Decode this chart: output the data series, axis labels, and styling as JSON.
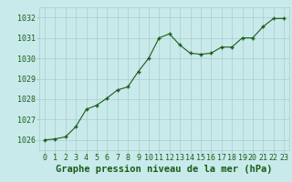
{
  "x": [
    0,
    1,
    2,
    3,
    4,
    5,
    6,
    7,
    8,
    9,
    10,
    11,
    12,
    13,
    14,
    15,
    16,
    17,
    18,
    19,
    20,
    21,
    22,
    23
  ],
  "y": [
    1026.0,
    1026.05,
    1026.15,
    1026.65,
    1027.5,
    1027.7,
    1028.05,
    1028.45,
    1028.6,
    1029.35,
    1030.0,
    1031.0,
    1031.2,
    1030.65,
    1030.25,
    1030.2,
    1030.25,
    1030.55,
    1030.55,
    1031.0,
    1031.0,
    1031.55,
    1031.95,
    1031.95
  ],
  "line_color": "#1a5c1a",
  "marker_color": "#1a5c1a",
  "bg_color": "#c8eaea",
  "grid_color": "#aacccc",
  "title": "Graphe pression niveau de la mer (hPa)",
  "title_color": "#1a5c1a",
  "ylim": [
    1025.5,
    1032.5
  ],
  "xlim": [
    -0.5,
    23.5
  ],
  "yticks": [
    1026,
    1027,
    1028,
    1029,
    1030,
    1031,
    1032
  ],
  "xtick_labels": [
    "0",
    "1",
    "2",
    "3",
    "4",
    "5",
    "6",
    "7",
    "8",
    "9",
    "10",
    "11",
    "12",
    "13",
    "14",
    "15",
    "16",
    "17",
    "18",
    "19",
    "20",
    "21",
    "22",
    "23"
  ],
  "title_fontsize": 7.5,
  "tick_fontsize": 6.0
}
